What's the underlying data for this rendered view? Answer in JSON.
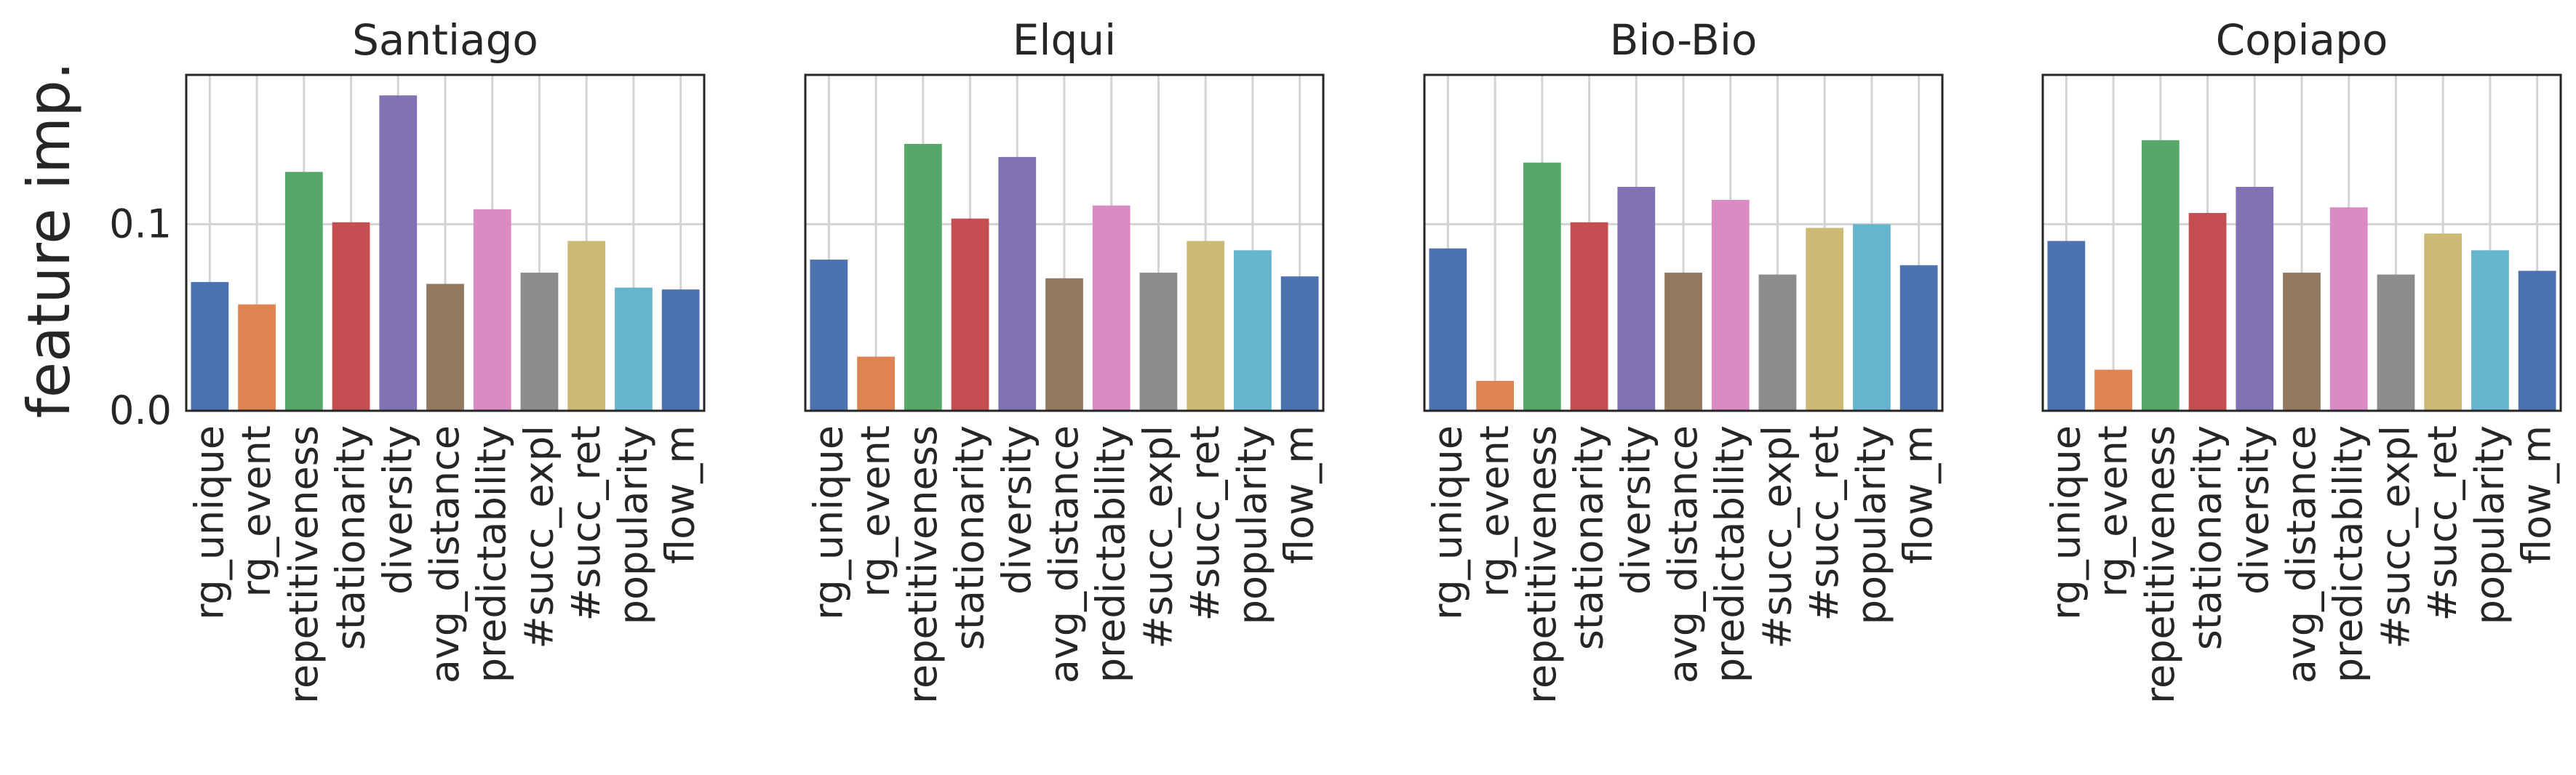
{
  "chart_data": {
    "type": "bar",
    "ylabel": "feature imp.",
    "xlabel": "",
    "ylim": [
      0,
      0.18
    ],
    "yticks": [
      {
        "value": 0.0,
        "label": "0.0"
      },
      {
        "value": 0.1,
        "label": "0.1"
      }
    ],
    "grid": true,
    "shared_y": true,
    "categories": [
      "rg_unique",
      "rg_event",
      "repetitiveness",
      "stationarity",
      "diversity",
      "avg_distance",
      "predictability",
      "#succ_expl",
      "#succ_ret",
      "popularity",
      "flow_m"
    ],
    "bar_colors": [
      "#4c72b0",
      "#dd8452",
      "#55a868",
      "#c44e52",
      "#8172b3",
      "#937860",
      "#da8bc3",
      "#8c8c8c",
      "#ccb974",
      "#64b5cd",
      "#4c72b0"
    ],
    "panels": [
      {
        "title": "Santiago",
        "values": [
          0.069,
          0.057,
          0.128,
          0.101,
          0.169,
          0.068,
          0.108,
          0.074,
          0.091,
          0.066,
          0.065
        ]
      },
      {
        "title": "Elqui",
        "values": [
          0.081,
          0.029,
          0.143,
          0.103,
          0.136,
          0.071,
          0.11,
          0.074,
          0.091,
          0.086,
          0.072
        ]
      },
      {
        "title": "Bio-Bio",
        "values": [
          0.087,
          0.016,
          0.133,
          0.101,
          0.12,
          0.074,
          0.113,
          0.073,
          0.098,
          0.1,
          0.078
        ]
      },
      {
        "title": "Copiapo",
        "values": [
          0.091,
          0.022,
          0.145,
          0.106,
          0.12,
          0.074,
          0.109,
          0.073,
          0.095,
          0.086,
          0.075
        ]
      }
    ]
  }
}
